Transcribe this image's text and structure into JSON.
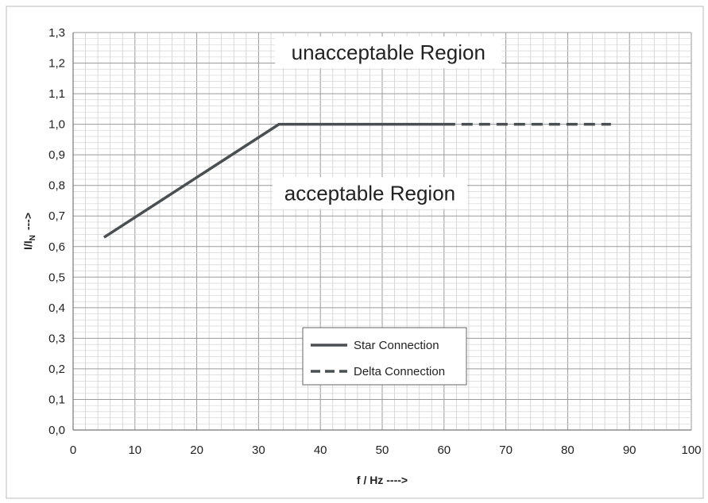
{
  "chart_data": {
    "type": "line",
    "xlabel": "f / Hz ---->",
    "ylabel_main": "I/I",
    "ylabel_sub": "N",
    "ylabel_arrow": "--->",
    "xlim": [
      0,
      100
    ],
    "ylim": [
      0,
      1.3
    ],
    "x_ticks": [
      "0",
      "10",
      "20",
      "30",
      "40",
      "50",
      "60",
      "70",
      "80",
      "90",
      "100"
    ],
    "y_ticks": [
      "0,0",
      "0,1",
      "0,2",
      "0,3",
      "0,4",
      "0,5",
      "0,6",
      "0,7",
      "0,8",
      "0,9",
      "1,0",
      "1,1",
      "1,2",
      "1,3"
    ],
    "grid": true,
    "minor_grid_step": 2,
    "series": [
      {
        "name": "Star Connection",
        "style": "solid",
        "color": "#4a4f52",
        "x": [
          5,
          33.3,
          60
        ],
        "y": [
          0.63,
          1.0,
          1.0
        ]
      },
      {
        "name": "Delta Connection",
        "style": "dashed",
        "color": "#4a4f52",
        "x": [
          60,
          87
        ],
        "y": [
          1.0,
          1.0
        ]
      }
    ],
    "annotations": [
      {
        "text": "unacceptable Region",
        "x": 51,
        "y": 1.235
      },
      {
        "text": "acceptable Region",
        "x": 48,
        "y": 0.775
      }
    ],
    "legend": {
      "placement": "center-bottom",
      "entries": [
        "Star Connection",
        "Delta Connection"
      ]
    }
  }
}
